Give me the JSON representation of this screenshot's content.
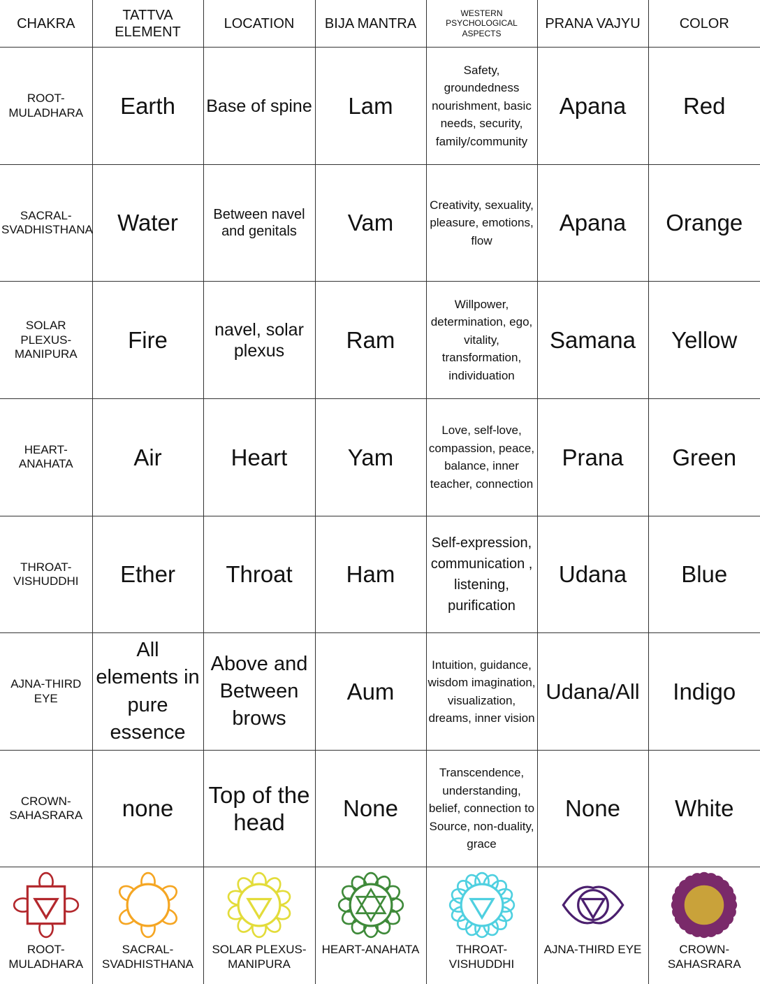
{
  "headers": [
    "CHAKRA",
    "TATTVA ELEMENT",
    "LOCATION",
    "BIJA MANTRA",
    "WESTERN PSYCHOLOGICAL ASPECTS",
    "PRANA VAJYU",
    "COLOR"
  ],
  "rows": [
    {
      "chakra": "ROOT-MULADHARA",
      "element": "Earth",
      "location": "Base of spine",
      "mantra": "Lam",
      "aspects": "Safety, groundedness nourishment, basic needs, security, family/community",
      "vayu": "Apana",
      "color": "Red"
    },
    {
      "chakra": "SACRAL-SVADHISTHANA",
      "element": "Water",
      "location": "Between navel and genitals",
      "mantra": "Vam",
      "aspects": "Creativity, sexuality, pleasure, emotions, flow",
      "vayu": "Apana",
      "color": "Orange"
    },
    {
      "chakra": "SOLAR PLEXUS-MANIPURA",
      "element": "Fire",
      "location": "navel, solar plexus",
      "mantra": "Ram",
      "aspects": "Willpower, determination, ego, vitality, transformation, individuation",
      "vayu": "Samana",
      "color": "Yellow"
    },
    {
      "chakra": "HEART-ANAHATA",
      "element": "Air",
      "location": "Heart",
      "mantra": "Yam",
      "aspects": "Love, self-love, compassion, peace, balance, inner teacher, connection",
      "vayu": "Prana",
      "color": "Green"
    },
    {
      "chakra": "THROAT-VISHUDDHI",
      "element": "Ether",
      "location": "Throat",
      "mantra": "Ham",
      "aspects": "Self-expression, communication , listening, purification",
      "vayu": "Udana",
      "color": "Blue"
    },
    {
      "chakra": "AJNA-THIRD EYE",
      "element": "All elements in pure essence",
      "location": "Above and Between brows",
      "mantra": "Aum",
      "aspects": "Intuition, guidance, wisdom imagination, visualization, dreams, inner vision",
      "vayu": "Udana/All",
      "color": "Indigo"
    },
    {
      "chakra": "CROWN-SAHASRARA",
      "element": "none",
      "location": "Top of the head",
      "mantra": "None",
      "aspects": "Transcendence, understanding, belief, connection to Source, non-duality, grace",
      "vayu": "None",
      "color": "White"
    }
  ],
  "icons": [
    {
      "label": "ROOT-MULADHARA",
      "icon": "muladhara-symbol-icon",
      "hex": "#b3282d"
    },
    {
      "label": "SACRAL-SVADHISTHANA",
      "icon": "svadhisthana-symbol-icon",
      "hex": "#f5a623"
    },
    {
      "label": "SOLAR PLEXUS-MANIPURA",
      "icon": "manipura-symbol-icon",
      "hex": "#e3dc3a"
    },
    {
      "label": "HEART-ANAHATA",
      "icon": "anahata-symbol-icon",
      "hex": "#3f8a3a"
    },
    {
      "label": "THROAT-VISHUDDHI",
      "icon": "vishuddhi-symbol-icon",
      "hex": "#4fd0e0"
    },
    {
      "label": "AJNA-THIRD EYE",
      "icon": "ajna-symbol-icon",
      "hex": "#4b1f6e"
    },
    {
      "label": "CROWN-SAHASRARA",
      "icon": "sahasrara-symbol-icon",
      "hex": "#7a2a6a"
    }
  ]
}
